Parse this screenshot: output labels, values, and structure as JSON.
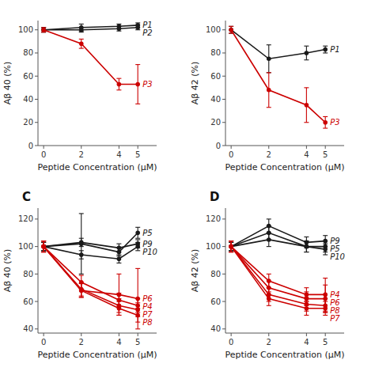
{
  "chart_data": [
    {
      "type": "line",
      "x_label": "Peptide Concentration (μM)",
      "y_label": "Aβ 40 (%)",
      "x": [
        0,
        2,
        4,
        5
      ],
      "xlim": [
        -0.3,
        6.0
      ],
      "ylim": [
        0,
        108
      ],
      "xticks": [
        0,
        2,
        4,
        5
      ],
      "yticks": [
        0,
        20,
        40,
        60,
        80,
        100
      ],
      "marker": "circle",
      "series": [
        {
          "name": "P1",
          "color": "#1a1a1a",
          "values": [
            100,
            102,
            103,
            104
          ],
          "errors": [
            2,
            3,
            2,
            2
          ]
        },
        {
          "name": "P2",
          "color": "#1a1a1a",
          "values": [
            100,
            100,
            101,
            102
          ],
          "errors": [
            2,
            2,
            2,
            2
          ]
        },
        {
          "name": "P3",
          "color": "#cc0000",
          "values": [
            100,
            88,
            53,
            53
          ],
          "errors": [
            2,
            4,
            5,
            17
          ]
        }
      ]
    },
    {
      "type": "line",
      "x_label": "Peptide Concentration (μM)",
      "y_label": "Aβ 42 (%)",
      "x": [
        0,
        2,
        4,
        5
      ],
      "xlim": [
        -0.3,
        6.0
      ],
      "ylim": [
        0,
        108
      ],
      "xticks": [
        0,
        2,
        4,
        5
      ],
      "yticks": [
        0,
        20,
        40,
        60,
        80,
        100
      ],
      "marker": "circle",
      "series": [
        {
          "name": "P1",
          "color": "#1a1a1a",
          "values": [
            100,
            75,
            80,
            83
          ],
          "errors": [
            3,
            12,
            6,
            3
          ]
        },
        {
          "name": "P3",
          "color": "#cc0000",
          "values": [
            100,
            48,
            35,
            20
          ],
          "errors": [
            3,
            15,
            15,
            5
          ]
        }
      ]
    },
    {
      "type": "line",
      "title": "C",
      "x_label": "Peptide Concentration (μM)",
      "y_label": "Aβ 40 (%)",
      "x": [
        0,
        2,
        4,
        5
      ],
      "xlim": [
        -0.3,
        6.0
      ],
      "ylim": [
        37,
        128
      ],
      "xticks": [
        0,
        2,
        4,
        5
      ],
      "yticks": [
        40,
        60,
        80,
        100,
        120
      ],
      "marker": "circle",
      "series": [
        {
          "name": "P5",
          "color": "#1a1a1a",
          "values": [
            100,
            102,
            96,
            110
          ],
          "errors": [
            3,
            22,
            3,
            4
          ]
        },
        {
          "name": "P9",
          "color": "#1a1a1a",
          "values": [
            100,
            103,
            99,
            102
          ],
          "errors": [
            3,
            3,
            3,
            3
          ]
        },
        {
          "name": "P10",
          "color": "#1a1a1a",
          "values": [
            100,
            94,
            91,
            100
          ],
          "errors": [
            3,
            3,
            3,
            3
          ]
        },
        {
          "name": "P6",
          "color": "#cc0000",
          "values": [
            100,
            68,
            65,
            62
          ],
          "errors": [
            4,
            5,
            15,
            22
          ]
        },
        {
          "name": "P4",
          "color": "#cc0000",
          "values": [
            100,
            74,
            61,
            57
          ],
          "errors": [
            4,
            5,
            5,
            5
          ]
        },
        {
          "name": "P7",
          "color": "#cc0000",
          "values": [
            100,
            69,
            57,
            54
          ],
          "errors": [
            4,
            5,
            5,
            5
          ]
        },
        {
          "name": "P8",
          "color": "#cc0000",
          "values": [
            100,
            68,
            55,
            50
          ],
          "errors": [
            4,
            5,
            5,
            5
          ]
        }
      ]
    },
    {
      "type": "line",
      "title": "D",
      "x_label": "Peptide Concentration (μM)",
      "y_label": "Aβ 42 (%)",
      "x": [
        0,
        2,
        4,
        5
      ],
      "xlim": [
        -0.3,
        6.0
      ],
      "ylim": [
        37,
        128
      ],
      "xticks": [
        0,
        2,
        4,
        5
      ],
      "yticks": [
        40,
        60,
        80,
        100,
        120
      ],
      "marker": "circle",
      "series": [
        {
          "name": "P9",
          "color": "#1a1a1a",
          "values": [
            100,
            115,
            103,
            104
          ],
          "errors": [
            3,
            5,
            4,
            4
          ]
        },
        {
          "name": "P5",
          "color": "#1a1a1a",
          "values": [
            100,
            110,
            100,
            100
          ],
          "errors": [
            3,
            5,
            4,
            4
          ]
        },
        {
          "name": "P10",
          "color": "#1a1a1a",
          "values": [
            100,
            105,
            100,
            98
          ],
          "errors": [
            3,
            5,
            4,
            4
          ]
        },
        {
          "name": "P4",
          "color": "#cc0000",
          "values": [
            100,
            75,
            65,
            65
          ],
          "errors": [
            4,
            5,
            5,
            12
          ]
        },
        {
          "name": "P6",
          "color": "#cc0000",
          "values": [
            100,
            70,
            62,
            62
          ],
          "errors": [
            4,
            5,
            5,
            10
          ]
        },
        {
          "name": "P8",
          "color": "#cc0000",
          "values": [
            100,
            65,
            58,
            57
          ],
          "errors": [
            4,
            5,
            5,
            5
          ]
        },
        {
          "name": "P7",
          "color": "#cc0000",
          "values": [
            100,
            62,
            55,
            55
          ],
          "errors": [
            4,
            5,
            5,
            5
          ]
        }
      ]
    }
  ]
}
